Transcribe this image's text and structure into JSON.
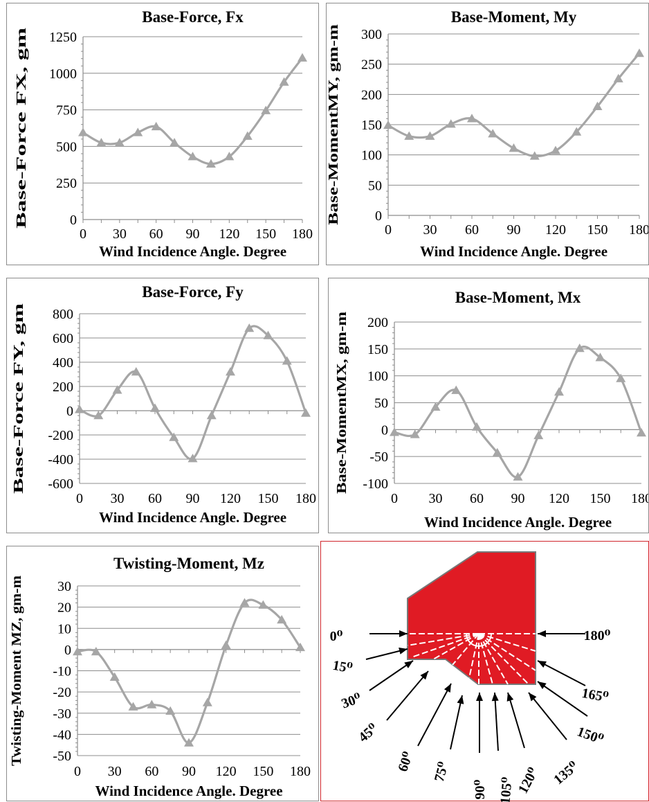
{
  "colors": {
    "series": "#a6a6a6",
    "grid": "#8c8c8c",
    "text": "#000000",
    "model_fill": "#e01b24",
    "model_stroke": "#777777",
    "frame": "#d0262c"
  },
  "chart_data": [
    {
      "type": "line",
      "title": "Base-Force, Fx",
      "xlabel": "Wind Incidence Angle. Degree",
      "ylabel": "Base-Force FX, gm",
      "x": [
        0,
        15,
        30,
        45,
        60,
        75,
        90,
        105,
        120,
        135,
        150,
        165,
        180
      ],
      "values": [
        595,
        525,
        525,
        595,
        635,
        525,
        430,
        380,
        430,
        570,
        745,
        940,
        1105
      ],
      "xticks": [
        "0",
        "30",
        "60",
        "90",
        "120",
        "150",
        "180"
      ],
      "yticks": [
        "0",
        "250",
        "500",
        "750",
        "1000",
        "1250"
      ],
      "xlim": [
        0,
        180
      ],
      "ylim": [
        0,
        1250
      ],
      "grid": true,
      "marker": "triangle"
    },
    {
      "type": "line",
      "title": "Base-Moment, My",
      "xlabel": "Wind Incidence Angle. Degree",
      "ylabel": "Base-MomentMY, gm-m",
      "x": [
        0,
        15,
        30,
        45,
        60,
        75,
        90,
        105,
        120,
        135,
        150,
        165,
        180
      ],
      "values": [
        149,
        131,
        131,
        151,
        160,
        135,
        111,
        98,
        107,
        138,
        180,
        226,
        268
      ],
      "xticks": [
        "0",
        "30",
        "60",
        "90",
        "120",
        "150",
        "180"
      ],
      "yticks": [
        "0",
        "50",
        "100",
        "150",
        "200",
        "250",
        "300"
      ],
      "xlim": [
        0,
        180
      ],
      "ylim": [
        0,
        300
      ],
      "grid": true,
      "marker": "triangle"
    },
    {
      "type": "line",
      "title": "Base-Force, Fy",
      "xlabel": "Wind Incidence Angle. Degree",
      "ylabel": "Base-Force FY, gm",
      "x": [
        0,
        15,
        30,
        45,
        60,
        75,
        90,
        105,
        120,
        135,
        150,
        165,
        180
      ],
      "values": [
        10,
        -40,
        170,
        320,
        20,
        -220,
        -395,
        -40,
        320,
        680,
        620,
        410,
        -20
      ],
      "xticks": [
        "0",
        "30",
        "60",
        "90",
        "120",
        "150",
        "180"
      ],
      "yticks": [
        "-600",
        "-400",
        "-200",
        "0",
        "200",
        "400",
        "600",
        "800"
      ],
      "xlim": [
        0,
        180
      ],
      "ylim": [
        -600,
        800
      ],
      "grid": true,
      "marker": "triangle"
    },
    {
      "type": "line",
      "title": "Base-Moment, Mx",
      "xlabel": "Wind Incidence Angle. Degree",
      "ylabel": "Base-MomentMX, gm-m",
      "x": [
        0,
        15,
        30,
        45,
        60,
        75,
        90,
        105,
        120,
        135,
        150,
        165,
        180
      ],
      "values": [
        -5,
        -9,
        42,
        73,
        5,
        -43,
        -88,
        -11,
        70,
        151,
        134,
        95,
        -6
      ],
      "xticks": [
        "0",
        "30",
        "60",
        "90",
        "120",
        "150",
        "180"
      ],
      "yticks": [
        "-100",
        "-50",
        "0",
        "50",
        "100",
        "150",
        "200"
      ],
      "xlim": [
        0,
        180
      ],
      "ylim": [
        -100,
        200
      ],
      "grid": true,
      "marker": "triangle"
    },
    {
      "type": "line",
      "title": "Twisting-Moment, Mz",
      "xlabel": "Wind Incidence Angle. Degree",
      "ylabel": "Twisting-Moment  MZ, gm-m",
      "x": [
        0,
        15,
        30,
        45,
        60,
        75,
        90,
        105,
        120,
        135,
        150,
        165,
        180
      ],
      "values": [
        -1,
        -1,
        -13,
        -27,
        -26,
        -29,
        -44,
        -25,
        2,
        22,
        21,
        14,
        1
      ],
      "xticks": [
        "0",
        "30",
        "60",
        "90",
        "120",
        "150",
        "180"
      ],
      "yticks": [
        "-50",
        "-40",
        "-30",
        "-20",
        "-10",
        "0",
        "10",
        "20",
        "30"
      ],
      "xlim": [
        0,
        180
      ],
      "ylim": [
        -50,
        30
      ],
      "grid": true,
      "marker": "triangle"
    }
  ],
  "wind_diagram": {
    "angle_labels": [
      "0⁰",
      "15⁰",
      "30⁰",
      "45⁰",
      "60⁰",
      "75⁰",
      "90⁰",
      "105⁰",
      "120⁰",
      "135⁰",
      "150⁰",
      "165⁰",
      "180⁰"
    ]
  }
}
